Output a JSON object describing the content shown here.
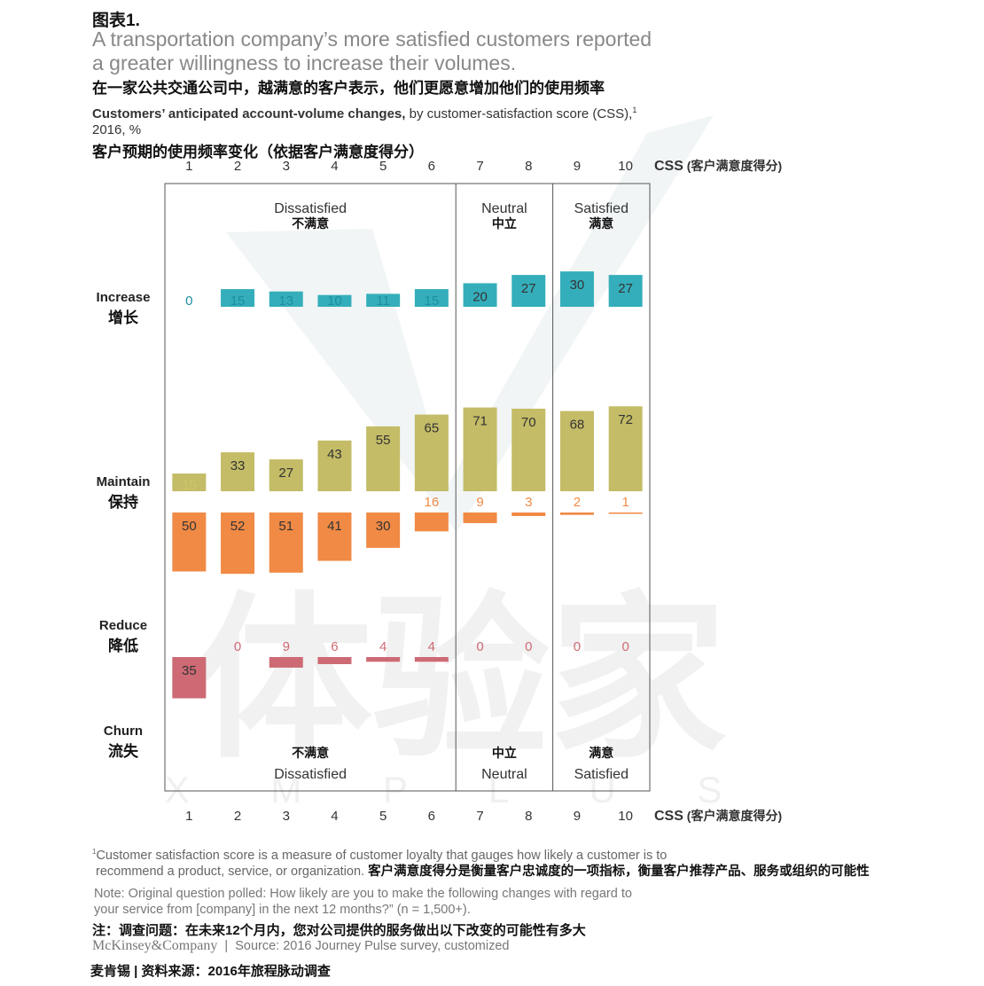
{
  "figure_label": "图表1.",
  "title_en_line1": "A transportation company’s more satisfied customers reported",
  "title_en_line2": "a greater willingness to increase their volumes.",
  "title_zh": "在一家公共交通公司中，越满意的客户表示，他们更愿意增加他们的使用频率",
  "subtitle_bold": "Customers’ anticipated account-volume changes,",
  "subtitle_rest": " by customer-satisfaction score (CSS),",
  "subtitle_sup": "1",
  "subtitle_year": "2016, %",
  "subtitle_zh": "客户预期的使用频率变化（依据客户满意度得分）",
  "watermark": {
    "text": "体验家",
    "letters": "X M P L U S"
  },
  "chart_data": {
    "type": "bar",
    "categories": [
      "1",
      "2",
      "3",
      "4",
      "5",
      "6",
      "7",
      "8",
      "9",
      "10"
    ],
    "axis_label_en": "CSS",
    "axis_label_zh": "(客户满意度得分)",
    "groups_top": [
      {
        "en": "Dissatisfied",
        "zh": "不满意",
        "range": [
          1,
          6
        ]
      },
      {
        "en": "Neutral",
        "zh": "中立",
        "range": [
          7,
          8
        ]
      },
      {
        "en": "Satisfied",
        "zh": "满意",
        "range": [
          9,
          10
        ]
      }
    ],
    "series": [
      {
        "en": "Increase",
        "zh": "增长",
        "color": "#35aebb",
        "label_color": "#1e8fa0",
        "values": [
          0,
          15,
          13,
          10,
          11,
          15,
          20,
          27,
          30,
          27
        ]
      },
      {
        "en": "Maintain",
        "zh": "保持",
        "color": "#c4bc66",
        "label_color": "#d0c56a",
        "values": [
          15,
          33,
          27,
          43,
          55,
          65,
          71,
          70,
          68,
          72
        ]
      },
      {
        "en": "Reduce",
        "zh": "降低",
        "color": "#f08a45",
        "label_color": "#f08a45",
        "values": [
          50,
          52,
          51,
          41,
          30,
          16,
          9,
          3,
          2,
          1
        ]
      },
      {
        "en": "Churn",
        "zh": "流失",
        "color": "#cd6a74",
        "label_color": "#cd6a74",
        "values": [
          35,
          0,
          9,
          6,
          4,
          4,
          0,
          0,
          0,
          0
        ]
      }
    ]
  },
  "footnote_en_1": "Customer satisfaction score is a measure of customer loyalty that gauges how likely a customer is to",
  "footnote_en_2": "recommend a product, service, or organization.",
  "footnote_sup": "1",
  "footnote_zh": "客户满意度得分是衡量客户忠诚度的一项指标，衡量客户推荐产品、服务或组织的可能性",
  "note_en_1": "Note: Original question polled: How likely are you to make the following changes with regard to",
  "note_en_2": "your service from [company] in the next 12 months?” (n = 1,500+).",
  "note_zh": "注：调查问题：在未来12个月内，您对公司提供的服务做出以下改变的可能性有多大",
  "source_brand": "McKinsey&Company",
  "source_sep": "|",
  "source_text": "Source: 2016 Journey Pulse survey, customized",
  "source_zh": "麦肯锡 | 资料来源：2016年旅程脉动调查"
}
